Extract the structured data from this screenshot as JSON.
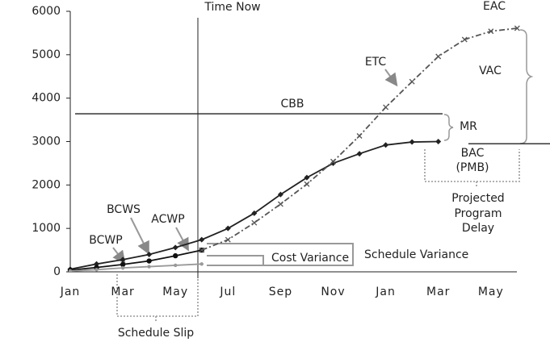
{
  "chart_data": {
    "type": "line",
    "categories": [
      "Jan",
      null,
      "Mar",
      null,
      "May",
      null,
      "Jul",
      null,
      "Sep",
      null,
      "Nov",
      null,
      "Jan",
      null,
      "Mar",
      null,
      "May",
      null
    ],
    "series": [
      {
        "name": "BCWS",
        "color": "#222222",
        "marker": "diamond",
        "values": [
          60,
          180,
          280,
          400,
          560,
          740,
          1000,
          1350,
          1780,
          2170,
          2500,
          2720,
          2920,
          2990,
          3000,
          null,
          null,
          null
        ]
      },
      {
        "name": "ACWP",
        "color": "#111111",
        "marker": "circle",
        "values": [
          40,
          100,
          170,
          250,
          370,
          500,
          null,
          null,
          null,
          null,
          null,
          null,
          null,
          null,
          null,
          null,
          null,
          null
        ]
      },
      {
        "name": "BCWP",
        "color": "#999999",
        "marker": "dot",
        "values": [
          20,
          50,
          90,
          120,
          150,
          180,
          null,
          null,
          null,
          null,
          null,
          null,
          null,
          null,
          null,
          null,
          null,
          null
        ]
      },
      {
        "name": "ETC",
        "color": "#555555",
        "marker": "x",
        "dash": true,
        "values": [
          null,
          null,
          null,
          null,
          null,
          500,
          740,
          1130,
          1560,
          2020,
          2540,
          3130,
          3790,
          4380,
          4960,
          5350,
          5540,
          5610
        ]
      }
    ],
    "ylim": [
      0,
      6000
    ],
    "yticks": [
      0,
      1000,
      2000,
      3000,
      4000,
      5000,
      6000
    ],
    "grid": false,
    "cbb": {
      "label": "CBB",
      "value": 3640
    },
    "bac": {
      "label": [
        "BAC",
        "(PMB)"
      ],
      "value": 2950
    },
    "annotations": {
      "time_now": "Time Now",
      "eac": "EAC",
      "vac": "VAC",
      "mr": "MR",
      "delay": [
        "Projected",
        "Program",
        "Delay"
      ],
      "cost_variance": "Cost Variance",
      "schedule_variance": "Schedule Variance",
      "schedule_slip": "Schedule Slip"
    }
  }
}
